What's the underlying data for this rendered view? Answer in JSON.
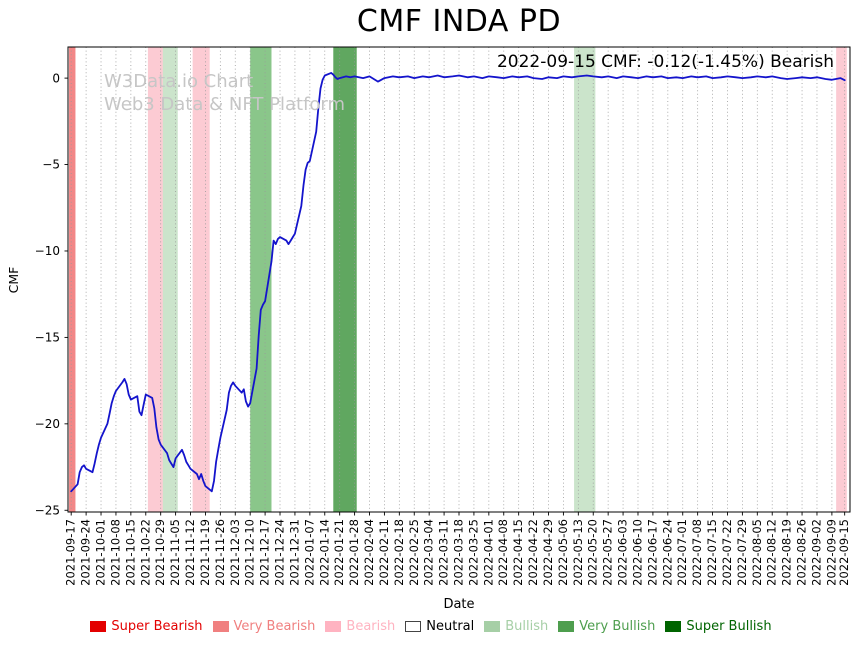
{
  "title": "CMF INDA PD",
  "annotation": "2022-09-15 CMF: -0.12(-1.45%) Bearish",
  "watermark": {
    "line1": "W3Data.io Chart",
    "line2": "Web3 Data & NFT Platform"
  },
  "axes": {
    "xlabel": "Date",
    "ylabel": "CMF"
  },
  "legend": {
    "items": [
      {
        "label": "Super Bearish",
        "color": "#e30000",
        "swatch": "#e30000"
      },
      {
        "label": "Very Bearish",
        "color": "#f08080",
        "swatch": "#f08080"
      },
      {
        "label": "Bearish",
        "color": "#ffb3c1",
        "swatch": "#ffb3c1"
      },
      {
        "label": "Neutral",
        "color": "#000000",
        "swatch": "#ffffff",
        "swatch_border": "#444444"
      },
      {
        "label": "Bullish",
        "color": "#a6cfa6",
        "swatch": "#a6cfa6"
      },
      {
        "label": "Very Bullish",
        "color": "#4e9e4e",
        "swatch": "#4e9e4e"
      },
      {
        "label": "Super Bullish",
        "color": "#006400",
        "swatch": "#006400"
      }
    ]
  },
  "chart_data": {
    "type": "line",
    "title": "CMF INDA PD",
    "xlabel": "Date",
    "ylabel": "CMF",
    "line_color": "#1414cc",
    "grid": "vertical-dotted",
    "legend_position": "bottom",
    "ylim": [
      -25.1,
      1.8
    ],
    "y_ticks": [
      0,
      -5,
      -10,
      -15,
      -20,
      -25
    ],
    "x_ticks": [
      "2021-09-17",
      "2021-09-24",
      "2021-10-01",
      "2021-10-08",
      "2021-10-15",
      "2021-10-22",
      "2021-10-29",
      "2021-11-05",
      "2021-11-12",
      "2021-11-19",
      "2021-11-26",
      "2021-12-03",
      "2021-12-10",
      "2021-12-17",
      "2021-12-24",
      "2021-12-31",
      "2022-01-07",
      "2022-01-14",
      "2022-01-21",
      "2022-01-28",
      "2022-02-04",
      "2022-02-11",
      "2022-02-18",
      "2022-02-25",
      "2022-03-04",
      "2022-03-11",
      "2022-03-18",
      "2022-03-25",
      "2022-04-01",
      "2022-04-08",
      "2022-04-15",
      "2022-04-22",
      "2022-04-29",
      "2022-05-06",
      "2022-05-13",
      "2022-05-20",
      "2022-05-27",
      "2022-06-03",
      "2022-06-10",
      "2022-06-17",
      "2022-06-24",
      "2022-07-01",
      "2022-07-08",
      "2022-07-15",
      "2022-07-22",
      "2022-07-29",
      "2022-08-05",
      "2022-08-12",
      "2022-08-19",
      "2022-08-26",
      "2022-09-02",
      "2022-09-09",
      "2022-09-15"
    ],
    "bands": [
      {
        "start": "2021-09-16",
        "end": "2021-09-19",
        "level": "very_bearish"
      },
      {
        "start": "2021-10-23",
        "end": "2021-10-30",
        "level": "bearish"
      },
      {
        "start": "2021-10-30",
        "end": "2021-11-06",
        "level": "bullish"
      },
      {
        "start": "2021-11-13",
        "end": "2021-11-21",
        "level": "bearish"
      },
      {
        "start": "2021-12-10",
        "end": "2021-12-20",
        "level": "very_bullish"
      },
      {
        "start": "2022-01-18",
        "end": "2022-01-29",
        "level": "super_bullish"
      },
      {
        "start": "2022-05-11",
        "end": "2022-05-21",
        "level": "bullish"
      },
      {
        "start": "2022-09-11",
        "end": "2022-09-16",
        "level": "bearish"
      }
    ],
    "band_colors": {
      "super_bearish": "rgba(215,0,0,0.7)",
      "very_bearish": "rgba(235,70,70,0.65)",
      "bearish": "rgba(250,160,175,0.55)",
      "neutral": "rgba(255,255,255,0)",
      "bullish": "rgba(140,195,140,0.45)",
      "very_bullish": "rgba(60,160,60,0.6)",
      "super_bullish": "rgba(10,120,10,0.65)"
    },
    "series": [
      {
        "name": "CMF",
        "points": [
          [
            "2021-09-17",
            -23.9
          ],
          [
            "2021-09-20",
            -23.5
          ],
          [
            "2021-09-21",
            -22.8
          ],
          [
            "2021-09-22",
            -22.5
          ],
          [
            "2021-09-23",
            -22.4
          ],
          [
            "2021-09-24",
            -22.6
          ],
          [
            "2021-09-27",
            -22.8
          ],
          [
            "2021-09-28",
            -22.3
          ],
          [
            "2021-09-29",
            -21.7
          ],
          [
            "2021-09-30",
            -21.2
          ],
          [
            "2021-10-01",
            -20.8
          ],
          [
            "2021-10-04",
            -20.0
          ],
          [
            "2021-10-05",
            -19.4
          ],
          [
            "2021-10-06",
            -18.8
          ],
          [
            "2021-10-07",
            -18.4
          ],
          [
            "2021-10-08",
            -18.1
          ],
          [
            "2021-10-11",
            -17.6
          ],
          [
            "2021-10-12",
            -17.4
          ],
          [
            "2021-10-13",
            -17.7
          ],
          [
            "2021-10-14",
            -18.3
          ],
          [
            "2021-10-15",
            -18.6
          ],
          [
            "2021-10-18",
            -18.4
          ],
          [
            "2021-10-19",
            -19.3
          ],
          [
            "2021-10-20",
            -19.5
          ],
          [
            "2021-10-21",
            -18.9
          ],
          [
            "2021-10-22",
            -18.3
          ],
          [
            "2021-10-25",
            -18.5
          ],
          [
            "2021-10-26",
            -19.1
          ],
          [
            "2021-10-27",
            -20.2
          ],
          [
            "2021-10-28",
            -20.9
          ],
          [
            "2021-10-29",
            -21.2
          ],
          [
            "2021-11-01",
            -21.7
          ],
          [
            "2021-11-02",
            -22.1
          ],
          [
            "2021-11-03",
            -22.3
          ],
          [
            "2021-11-04",
            -22.5
          ],
          [
            "2021-11-05",
            -22.0
          ],
          [
            "2021-11-08",
            -21.5
          ],
          [
            "2021-11-09",
            -21.8
          ],
          [
            "2021-11-10",
            -22.2
          ],
          [
            "2021-11-11",
            -22.4
          ],
          [
            "2021-11-12",
            -22.6
          ],
          [
            "2021-11-15",
            -22.9
          ],
          [
            "2021-11-16",
            -23.2
          ],
          [
            "2021-11-17",
            -22.9
          ],
          [
            "2021-11-18",
            -23.3
          ],
          [
            "2021-11-19",
            -23.6
          ],
          [
            "2021-11-22",
            -23.9
          ],
          [
            "2021-11-23",
            -23.3
          ],
          [
            "2021-11-24",
            -22.2
          ],
          [
            "2021-11-25",
            -21.5
          ],
          [
            "2021-11-26",
            -20.8
          ],
          [
            "2021-11-29",
            -19.2
          ],
          [
            "2021-11-30",
            -18.2
          ],
          [
            "2021-12-01",
            -17.8
          ],
          [
            "2021-12-02",
            -17.6
          ],
          [
            "2021-12-03",
            -17.8
          ],
          [
            "2021-12-06",
            -18.2
          ],
          [
            "2021-12-07",
            -18.0
          ],
          [
            "2021-12-08",
            -18.7
          ],
          [
            "2021-12-09",
            -19.0
          ],
          [
            "2021-12-10",
            -18.8
          ],
          [
            "2021-12-13",
            -16.8
          ],
          [
            "2021-12-14",
            -14.9
          ],
          [
            "2021-12-15",
            -13.4
          ],
          [
            "2021-12-16",
            -13.1
          ],
          [
            "2021-12-17",
            -12.9
          ],
          [
            "2021-12-20",
            -10.6
          ],
          [
            "2021-12-21",
            -9.4
          ],
          [
            "2021-12-22",
            -9.6
          ],
          [
            "2021-12-23",
            -9.3
          ],
          [
            "2021-12-24",
            -9.2
          ],
          [
            "2021-12-27",
            -9.4
          ],
          [
            "2021-12-28",
            -9.6
          ],
          [
            "2021-12-29",
            -9.4
          ],
          [
            "2021-12-30",
            -9.2
          ],
          [
            "2021-12-31",
            -9.0
          ],
          [
            "2022-01-03",
            -7.4
          ],
          [
            "2022-01-04",
            -6.2
          ],
          [
            "2022-01-05",
            -5.3
          ],
          [
            "2022-01-06",
            -4.9
          ],
          [
            "2022-01-07",
            -4.8
          ],
          [
            "2022-01-10",
            -3.1
          ],
          [
            "2022-01-11",
            -1.7
          ],
          [
            "2022-01-12",
            -0.6
          ],
          [
            "2022-01-13",
            -0.1
          ],
          [
            "2022-01-14",
            0.15
          ],
          [
            "2022-01-17",
            0.3
          ],
          [
            "2022-01-18",
            0.2
          ],
          [
            "2022-01-19",
            0.05
          ],
          [
            "2022-01-20",
            -0.05
          ],
          [
            "2022-01-21",
            0.0
          ],
          [
            "2022-01-24",
            0.1
          ],
          [
            "2022-01-26",
            0.05
          ],
          [
            "2022-01-28",
            0.1
          ],
          [
            "2022-02-01",
            0.0
          ],
          [
            "2022-02-04",
            0.1
          ],
          [
            "2022-02-08",
            -0.2
          ],
          [
            "2022-02-11",
            0.0
          ],
          [
            "2022-02-15",
            0.1
          ],
          [
            "2022-02-18",
            0.05
          ],
          [
            "2022-02-22",
            0.1
          ],
          [
            "2022-02-25",
            0.0
          ],
          [
            "2022-03-01",
            0.1
          ],
          [
            "2022-03-04",
            0.05
          ],
          [
            "2022-03-08",
            0.15
          ],
          [
            "2022-03-11",
            0.05
          ],
          [
            "2022-03-15",
            0.1
          ],
          [
            "2022-03-18",
            0.15
          ],
          [
            "2022-03-22",
            0.05
          ],
          [
            "2022-03-25",
            0.1
          ],
          [
            "2022-03-29",
            0.0
          ],
          [
            "2022-04-01",
            0.1
          ],
          [
            "2022-04-05",
            0.05
          ],
          [
            "2022-04-08",
            0.0
          ],
          [
            "2022-04-12",
            0.1
          ],
          [
            "2022-04-15",
            0.05
          ],
          [
            "2022-04-19",
            0.1
          ],
          [
            "2022-04-22",
            0.0
          ],
          [
            "2022-04-26",
            -0.05
          ],
          [
            "2022-04-29",
            0.05
          ],
          [
            "2022-05-03",
            0.0
          ],
          [
            "2022-05-06",
            0.1
          ],
          [
            "2022-05-10",
            0.05
          ],
          [
            "2022-05-13",
            0.1
          ],
          [
            "2022-05-17",
            0.15
          ],
          [
            "2022-05-20",
            0.1
          ],
          [
            "2022-05-24",
            0.05
          ],
          [
            "2022-05-27",
            0.1
          ],
          [
            "2022-05-31",
            0.0
          ],
          [
            "2022-06-03",
            0.1
          ],
          [
            "2022-06-07",
            0.05
          ],
          [
            "2022-06-10",
            0.0
          ],
          [
            "2022-06-14",
            0.1
          ],
          [
            "2022-06-17",
            0.05
          ],
          [
            "2022-06-21",
            0.1
          ],
          [
            "2022-06-24",
            0.0
          ],
          [
            "2022-06-28",
            0.05
          ],
          [
            "2022-07-01",
            0.0
          ],
          [
            "2022-07-05",
            0.1
          ],
          [
            "2022-07-08",
            0.05
          ],
          [
            "2022-07-12",
            0.1
          ],
          [
            "2022-07-15",
            0.0
          ],
          [
            "2022-07-19",
            0.05
          ],
          [
            "2022-07-22",
            0.1
          ],
          [
            "2022-07-26",
            0.05
          ],
          [
            "2022-07-29",
            0.0
          ],
          [
            "2022-08-02",
            0.05
          ],
          [
            "2022-08-05",
            0.1
          ],
          [
            "2022-08-09",
            0.05
          ],
          [
            "2022-08-12",
            0.1
          ],
          [
            "2022-08-16",
            0.0
          ],
          [
            "2022-08-19",
            -0.05
          ],
          [
            "2022-08-23",
            0.0
          ],
          [
            "2022-08-26",
            0.05
          ],
          [
            "2022-08-30",
            0.0
          ],
          [
            "2022-09-02",
            0.05
          ],
          [
            "2022-09-06",
            -0.05
          ],
          [
            "2022-09-09",
            -0.1
          ],
          [
            "2022-09-13",
            0.0
          ],
          [
            "2022-09-15",
            -0.12
          ]
        ]
      }
    ]
  }
}
